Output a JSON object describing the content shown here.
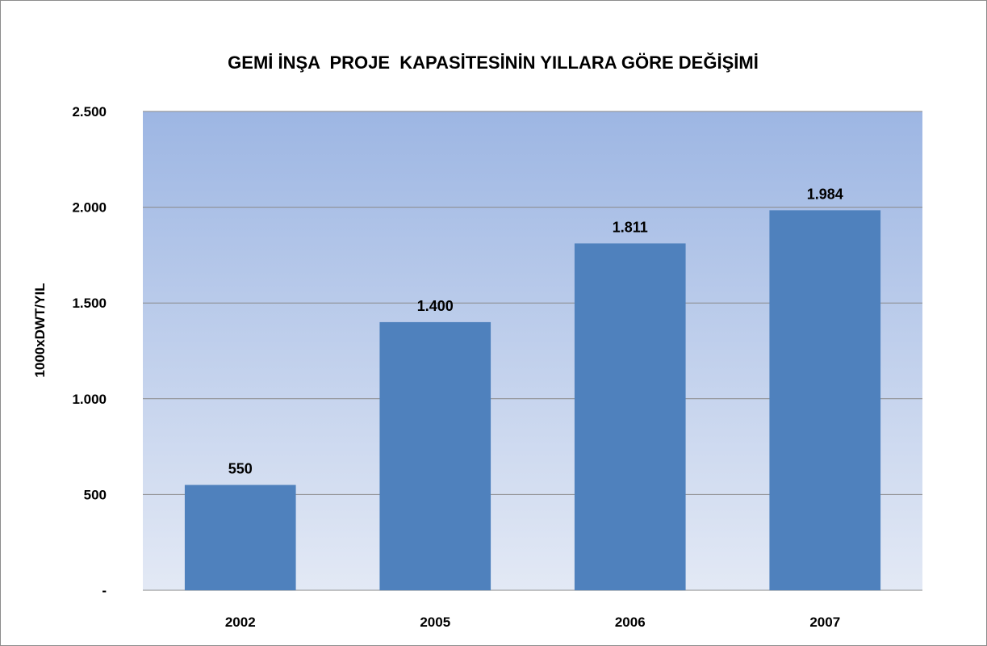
{
  "chart_data": {
    "type": "bar",
    "title": "GEMİ İNŞA  PROJE  KAPASİTESİNİN YILLARA GÖRE DEĞİŞİMİ",
    "xlabel": "",
    "ylabel": "1000xDWT/YIL",
    "categories": [
      "2002",
      "2005",
      "2006",
      "2007"
    ],
    "values": [
      550,
      1400,
      1811,
      1984
    ],
    "data_labels": [
      "550",
      "1.400",
      "1.811",
      "1.984"
    ],
    "ylim": [
      0,
      2500
    ],
    "y_ticks": [
      {
        "value": 0,
        "label": "-"
      },
      {
        "value": 500,
        "label": "500"
      },
      {
        "value": 1000,
        "label": "1.000"
      },
      {
        "value": 1500,
        "label": "1.500"
      },
      {
        "value": 2000,
        "label": "2.000"
      },
      {
        "value": 2500,
        "label": "2.500"
      }
    ],
    "grid": true,
    "legend": "none",
    "colors": {
      "bar": "#4f81bd",
      "plot_bg_top": "#9db6e3",
      "plot_bg_bottom": "#e3e9f5",
      "gridline": "#8a8a8a"
    }
  }
}
